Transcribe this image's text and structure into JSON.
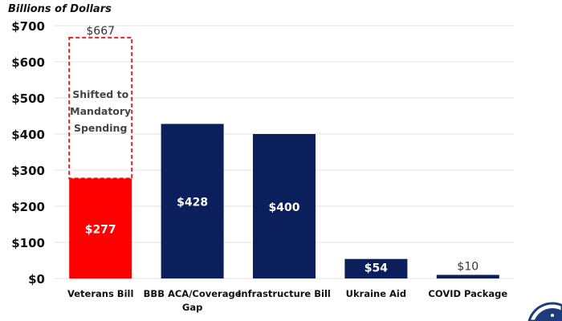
{
  "chart_data": {
    "type": "bar",
    "ylabel": "Billions of Dollars",
    "ylim": [
      0,
      700
    ],
    "yticks": [
      0,
      100,
      200,
      300,
      400,
      500,
      600,
      700
    ],
    "ytick_labels": [
      "$0",
      "$100",
      "$200",
      "$300",
      "$400",
      "$500",
      "$600",
      "$700"
    ],
    "grid": true,
    "categories": [
      "Veterans Bill",
      "BBB ACA/Coverage Gap",
      "Infrastructure Bill",
      "Ukraine Aid",
      "COVID Package"
    ],
    "category_lines": [
      [
        "Veterans Bill"
      ],
      [
        "BBB ACA/Coverage",
        "Gap"
      ],
      [
        "Infrastructure Bill"
      ],
      [
        "Ukraine Aid"
      ],
      [
        "COVID Package"
      ]
    ],
    "values": [
      277,
      428,
      400,
      54,
      10
    ],
    "value_labels": [
      "$277",
      "$428",
      "$400",
      "$54",
      "$10"
    ],
    "label_inside": [
      true,
      true,
      true,
      true,
      false
    ],
    "colors": [
      "#ff0000",
      "#0a1f5c",
      "#0a1f5c",
      "#0a1f5c",
      "#0a1f5c"
    ],
    "shifted": {
      "category": "Veterans Bill",
      "from": 277,
      "to": 667,
      "total_label": "$667",
      "annotation_lines": [
        "Shifted to",
        "Mandatory",
        "Spending"
      ],
      "border_color": "#d9262c"
    }
  }
}
